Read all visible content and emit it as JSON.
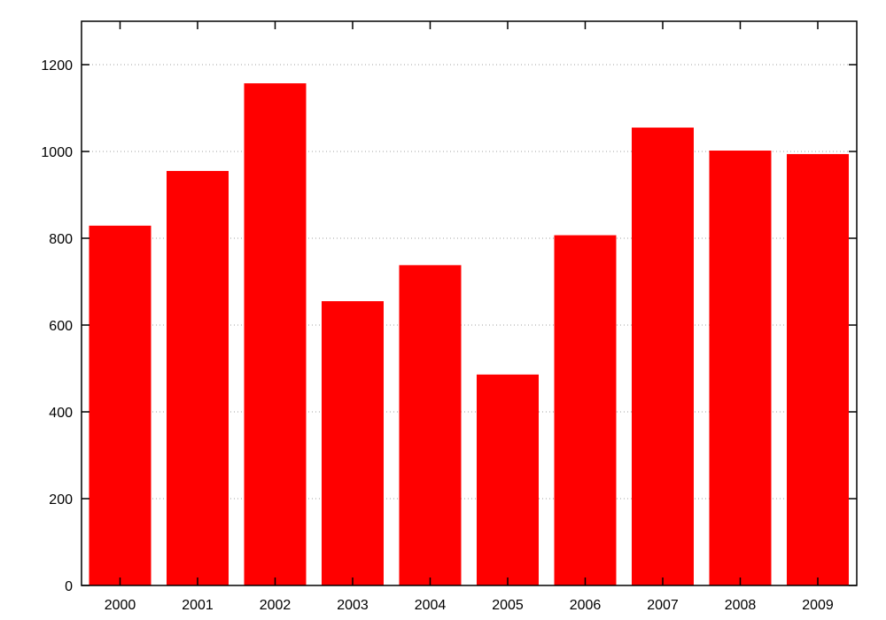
{
  "chart_data": {
    "type": "bar",
    "title": "",
    "xlabel": "",
    "ylabel": "",
    "categories": [
      "2000",
      "2001",
      "2002",
      "2003",
      "2004",
      "2005",
      "2006",
      "2007",
      "2008",
      "2009"
    ],
    "values": [
      829,
      955,
      1157,
      655,
      738,
      486,
      807,
      1055,
      1002,
      994
    ],
    "ylim": [
      0,
      1300
    ],
    "yticks": [
      0,
      200,
      400,
      600,
      800,
      1000,
      1200
    ],
    "ytick_labels": [
      "0",
      "200",
      "400",
      "600",
      "800",
      "1000",
      "1200"
    ],
    "grid": true,
    "legend": "none",
    "bar_color": "#ff0000"
  }
}
